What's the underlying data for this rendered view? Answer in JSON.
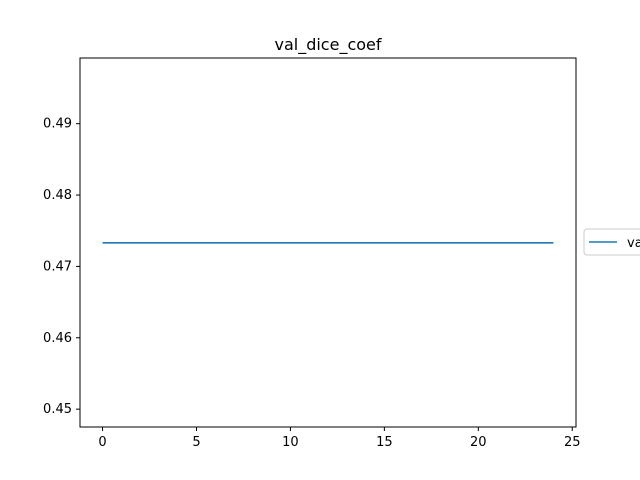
{
  "chart_data": {
    "type": "line",
    "title": "val_dice_coef",
    "xlabel": "",
    "ylabel": "",
    "x": [
      0,
      1,
      2,
      3,
      4,
      5,
      6,
      7,
      8,
      9,
      10,
      11,
      12,
      13,
      14,
      15,
      16,
      17,
      18,
      19,
      20,
      21,
      22,
      23,
      24
    ],
    "series": [
      {
        "name": "va",
        "color": "#1f77b4",
        "values": [
          0.4733,
          0.4733,
          0.4733,
          0.4733,
          0.4733,
          0.4733,
          0.4733,
          0.4733,
          0.4733,
          0.4733,
          0.4733,
          0.4733,
          0.4733,
          0.4733,
          0.4733,
          0.4733,
          0.4733,
          0.4733,
          0.4733,
          0.4733,
          0.4733,
          0.4733,
          0.4733,
          0.4733,
          0.4733
        ]
      }
    ],
    "xlim": [
      -1.2,
      25.2
    ],
    "ylim": [
      0.4475,
      0.4992
    ],
    "xticks": [
      0,
      5,
      10,
      15,
      20,
      25
    ],
    "xtick_labels": [
      "0",
      "5",
      "10",
      "15",
      "20",
      "25"
    ],
    "yticks": [
      0.45,
      0.46,
      0.47,
      0.48,
      0.49
    ],
    "ytick_labels": [
      "0.45",
      "0.46",
      "0.47",
      "0.48",
      "0.49"
    ],
    "grid": false,
    "legend_position": "outside-right"
  }
}
